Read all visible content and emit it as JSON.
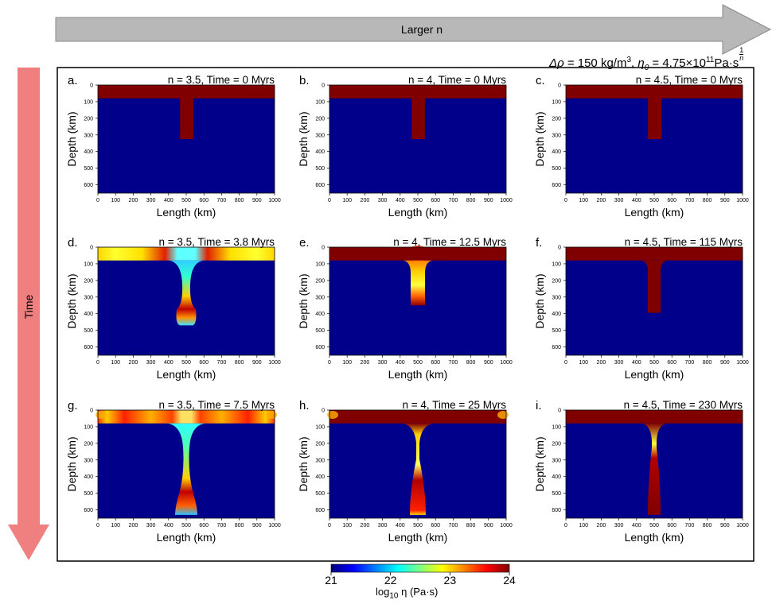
{
  "header": {
    "arrow_label": "Larger n",
    "time_label": "Time",
    "params": {
      "delta_rho_symbol": "Δρ",
      "delta_rho_value": " = 150 kg/m",
      "delta_rho_exp": "3",
      "eta_symbol": "η",
      "eta_sub": "0",
      "eta_value": " = 4.75×10",
      "eta_exp": "11",
      "eta_unit": "Pa·s",
      "frac_num": "1",
      "frac_den": "n"
    }
  },
  "axis_labels": {
    "x": "Length (km)",
    "y": "Depth (km)",
    "x_ticks": [
      "0",
      "100",
      "200",
      "300",
      "400",
      "500",
      "600",
      "700",
      "800",
      "900",
      "1000"
    ],
    "y_ticks": [
      "0",
      "100",
      "200",
      "300",
      "400",
      "500",
      "600"
    ]
  },
  "colors": {
    "viscosity_max": "#800000",
    "viscosity_min": "#00008b",
    "colormap": "jet",
    "arrow_gray": "#b8b8b8",
    "arrow_red": "#f08080"
  },
  "chart_data": [
    {
      "type": "heatmap",
      "panel": "a.",
      "title": "n = 3.5, Time = 0 Myrs",
      "n": 3.5,
      "time_myr": 0,
      "plate_bottom_km": 80,
      "slab_x_range_km": [
        465,
        540
      ],
      "slab_bottom_km": 325,
      "xlim": [
        0,
        1000
      ],
      "ylim": [
        0,
        650
      ]
    },
    {
      "type": "heatmap",
      "panel": "b.",
      "title": "n = 4, Time = 0 Myrs",
      "n": 4,
      "time_myr": 0,
      "plate_bottom_km": 80,
      "slab_x_range_km": [
        465,
        540
      ],
      "slab_bottom_km": 325,
      "xlim": [
        0,
        1000
      ],
      "ylim": [
        0,
        650
      ]
    },
    {
      "type": "heatmap",
      "panel": "c.",
      "title": "n = 4.5, Time = 0 Myrs",
      "n": 4.5,
      "time_myr": 0,
      "plate_bottom_km": 80,
      "slab_x_range_km": [
        465,
        540
      ],
      "slab_bottom_km": 325,
      "xlim": [
        0,
        1000
      ],
      "ylim": [
        0,
        650
      ]
    },
    {
      "type": "heatmap",
      "panel": "d.",
      "title": "n = 3.5, Time = 3.8 Myrs",
      "n": 3.5,
      "time_myr": 3.8,
      "plate_bottom_km": 80,
      "slab_bottom_km": 470,
      "xlim": [
        0,
        1000
      ],
      "ylim": [
        0,
        650
      ]
    },
    {
      "type": "heatmap",
      "panel": "e.",
      "title": "n = 4, Time = 12.5 Myrs",
      "n": 4,
      "time_myr": 12.5,
      "plate_bottom_km": 80,
      "slab_bottom_km": 350,
      "xlim": [
        0,
        1000
      ],
      "ylim": [
        0,
        650
      ]
    },
    {
      "type": "heatmap",
      "panel": "f.",
      "title": "n = 4.5, Time = 115 Myrs",
      "n": 4.5,
      "time_myr": 115,
      "plate_bottom_km": 80,
      "slab_bottom_km": 395,
      "xlim": [
        0,
        1000
      ],
      "ylim": [
        0,
        650
      ]
    },
    {
      "type": "heatmap",
      "panel": "g.",
      "title": "n = 3.5, Time = 7.5 Myrs",
      "n": 3.5,
      "time_myr": 7.5,
      "plate_bottom_km": 80,
      "slab_bottom_km": 630,
      "xlim": [
        0,
        1000
      ],
      "ylim": [
        0,
        650
      ]
    },
    {
      "type": "heatmap",
      "panel": "h.",
      "title": "n = 4, Time = 25 Myrs",
      "n": 4,
      "time_myr": 25,
      "plate_bottom_km": 80,
      "slab_bottom_km": 630,
      "xlim": [
        0,
        1000
      ],
      "ylim": [
        0,
        650
      ]
    },
    {
      "type": "heatmap",
      "panel": "i.",
      "title": "n = 4.5, Time = 230 Myrs",
      "n": 4.5,
      "time_myr": 230,
      "plate_bottom_km": 80,
      "slab_bottom_km": 630,
      "xlim": [
        0,
        1000
      ],
      "ylim": [
        0,
        650
      ]
    }
  ],
  "colorbar": {
    "range": [
      21,
      24
    ],
    "ticks": [
      "21",
      "22",
      "23",
      "24"
    ],
    "label_prefix": "log",
    "label_sub": "10",
    "label_suffix": " η (Pa·s)"
  }
}
